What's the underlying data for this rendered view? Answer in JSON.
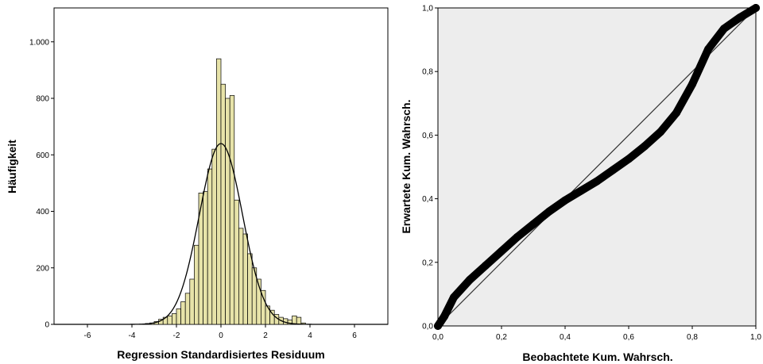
{
  "chart_data": [
    {
      "type": "bar",
      "subtype": "histogram",
      "xlabel": "Regression Standardisiertes Residuum",
      "ylabel": "Häufigkeit",
      "xlim": [
        -7.5,
        7.5
      ],
      "ylim": [
        0,
        1120
      ],
      "x_ticks": [
        -6,
        -4,
        -2,
        0,
        2,
        4,
        6
      ],
      "x_tick_labels": [
        "-6",
        "-4",
        "-2",
        "0",
        "2",
        "4",
        "6"
      ],
      "y_ticks": [
        0,
        200,
        400,
        600,
        800,
        1000
      ],
      "y_tick_labels": [
        "0",
        "200",
        "400",
        "600",
        "800",
        "1.000"
      ],
      "bin_width": 0.2,
      "bins_start": [
        -3.4,
        -3.2,
        -3.0,
        -2.8,
        -2.6,
        -2.4,
        -2.2,
        -2.0,
        -1.8,
        -1.6,
        -1.4,
        -1.2,
        -1.0,
        -0.8,
        -0.6,
        -0.4,
        -0.2,
        0.0,
        0.2,
        0.4,
        0.6,
        0.8,
        1.0,
        1.2,
        1.4,
        1.6,
        1.8,
        2.0,
        2.2,
        2.4,
        2.6,
        2.8,
        3.0,
        3.2,
        3.4,
        3.6
      ],
      "values": [
        3,
        5,
        10,
        18,
        25,
        30,
        38,
        55,
        80,
        110,
        160,
        280,
        465,
        470,
        550,
        620,
        940,
        850,
        800,
        810,
        440,
        340,
        320,
        250,
        200,
        160,
        120,
        65,
        50,
        35,
        25,
        20,
        15,
        30,
        25,
        5
      ],
      "bar_color": "#e7e3a9",
      "normal_curve": {
        "mean": 0.0,
        "sd": 0.97,
        "peak": 640
      }
    },
    {
      "type": "scatter",
      "subtype": "P-P plot",
      "xlabel": "Beobachtete Kum. Wahrsch.",
      "ylabel": "Erwartete Kum. Wahrsch.",
      "xlim": [
        0,
        1
      ],
      "ylim": [
        0,
        1
      ],
      "x_tick_labels": [
        "0,0",
        "0,2",
        "0,4",
        "0,6",
        "0,8",
        "1,0"
      ],
      "y_tick_labels": [
        "0,0",
        "0,2",
        "0,4",
        "0,6",
        "0,8",
        "1,0"
      ],
      "x": [
        0.0,
        0.02,
        0.05,
        0.1,
        0.15,
        0.2,
        0.25,
        0.3,
        0.35,
        0.4,
        0.45,
        0.5,
        0.55,
        0.6,
        0.65,
        0.7,
        0.75,
        0.8,
        0.85,
        0.9,
        0.95,
        1.0
      ],
      "y": [
        0.0,
        0.03,
        0.09,
        0.145,
        0.19,
        0.235,
        0.28,
        0.32,
        0.36,
        0.395,
        0.425,
        0.455,
        0.49,
        0.525,
        0.565,
        0.61,
        0.67,
        0.76,
        0.87,
        0.935,
        0.97,
        1.0
      ],
      "reference_line": [
        [
          0,
          0
        ],
        [
          1,
          1
        ]
      ],
      "background": "#ededed"
    }
  ]
}
